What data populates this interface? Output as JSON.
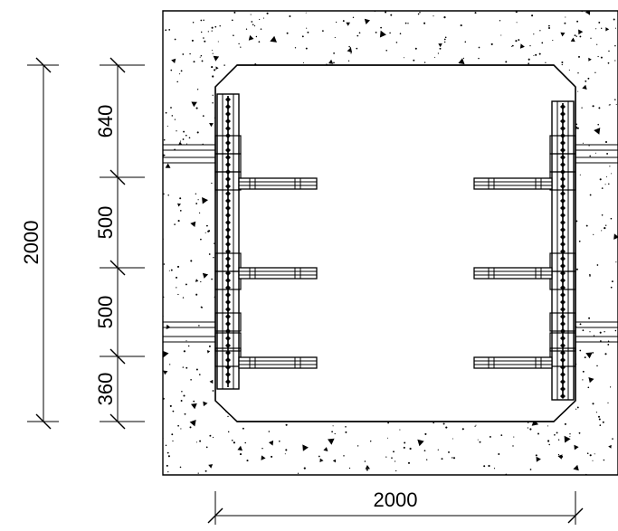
{
  "dimensions": {
    "overall_height": "2000",
    "segments": [
      "640",
      "500",
      "500",
      "360"
    ],
    "overall_width": "2000"
  },
  "colors": {
    "line": "#000000",
    "background": "#ffffff"
  }
}
